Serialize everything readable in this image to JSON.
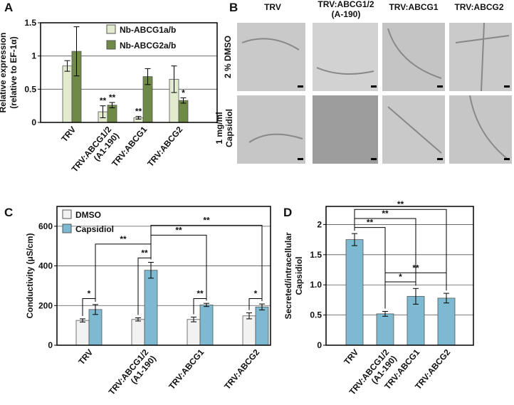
{
  "chart_data": [
    {
      "type": "bar",
      "panel": "A",
      "ylabel": [
        "Relative expression",
        "(relative to EF-1α)"
      ],
      "categories": [
        "TRV",
        "TRV:ABCG1/2\n(A1-190)",
        "TRV:ABCG1",
        "TRV:ABCG2"
      ],
      "series": [
        {
          "name": "Nb-ABCG1a/b",
          "color": "#e3ebcf",
          "values": [
            0.85,
            0.16,
            0.07,
            0.65
          ],
          "errors": [
            0.08,
            0.09,
            0.02,
            0.2
          ],
          "significance": [
            null,
            "**",
            "**",
            null
          ]
        },
        {
          "name": "Nb-ABCG2a/b",
          "color": "#6f8a46",
          "values": [
            1.07,
            0.26,
            0.69,
            0.33
          ],
          "errors": [
            0.37,
            0.04,
            0.12,
            0.04
          ],
          "significance": [
            null,
            "**",
            null,
            "*"
          ]
        }
      ],
      "ylim": [
        0,
        1.5
      ],
      "yticks": [
        0,
        0.5,
        1,
        1.5
      ],
      "grid": true
    },
    {
      "type": "bar",
      "panel": "C",
      "ylabel": [
        "Conductivity (μS/cm)"
      ],
      "categories": [
        "TRV",
        "TRV:ABCG1/2\n(A1-190)",
        "TRV:ABCG1",
        "TRV:ABCG2"
      ],
      "series": [
        {
          "name": "DMSO",
          "color": "#f2f2f2",
          "values": [
            125,
            130,
            130,
            148
          ],
          "errors": [
            8,
            8,
            12,
            15
          ]
        },
        {
          "name": "Capsidiol",
          "color": "#7db9d0",
          "values": [
            180,
            378,
            203,
            193
          ],
          "errors": [
            25,
            40,
            8,
            15
          ]
        }
      ],
      "brackets": [
        "*",
        "**",
        "**",
        "*",
        "**",
        "**",
        "**"
      ],
      "ylim": [
        0,
        700
      ],
      "yticks": [
        0,
        200,
        400,
        600
      ],
      "grid": true
    },
    {
      "type": "bar",
      "panel": "D",
      "ylabel": [
        "Secreted/intracellular",
        "Capsidiol"
      ],
      "categories": [
        "TRV",
        "TRV:ABCG1/2\n(A1-190)",
        "TRV:ABCG1",
        "TRV:ABCG2"
      ],
      "color": "#7db9d0",
      "values": [
        1.75,
        0.52,
        0.81,
        0.78
      ],
      "errors": [
        0.1,
        0.04,
        0.13,
        0.08
      ],
      "brackets": [
        "**",
        "**",
        "**",
        "*",
        "**"
      ],
      "ylim": [
        0,
        2.3
      ],
      "yticks": [
        0,
        0.5,
        {
          "value": 1,
          "label": "1.0"
        },
        1.5,
        2
      ],
      "grid": true
    }
  ],
  "micrographs": {
    "panel": "B",
    "columns": [
      "TRV",
      "TRV:ABCG1/2\n(A-190)",
      "TRV:ABCG1",
      "TRV:ABCG2"
    ],
    "rows": [
      "2 % DMSO",
      "1 mg/ml\nCapsidiol"
    ]
  }
}
